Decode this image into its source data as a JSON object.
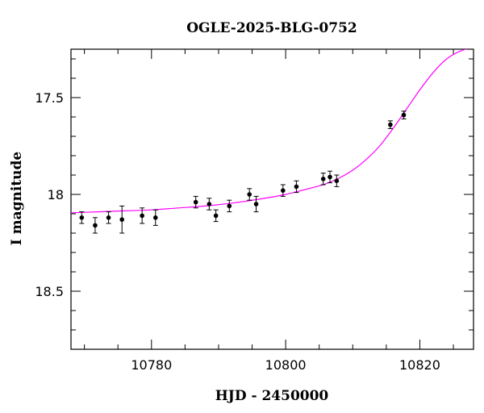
{
  "chart_data": {
    "type": "scatter",
    "title": "OGLE-2025-BLG-0752",
    "xlabel": "HJD - 2450000",
    "ylabel": "I magnitude",
    "xlim": [
      10768,
      10828
    ],
    "ylim": [
      18.8,
      17.25
    ],
    "y_inverted": true,
    "x_major_ticks": [
      10780,
      10800,
      10820
    ],
    "x_tick_labels": [
      "10780",
      "10800",
      "10820"
    ],
    "x_minor_step": 5,
    "y_major_ticks": [
      17.5,
      18,
      18.5
    ],
    "y_tick_labels": [
      "17.5",
      "18",
      "18.5"
    ],
    "y_minor_step": 0.1,
    "grid": false,
    "series": [
      {
        "kind": "points_with_errorbars",
        "color": "#000000",
        "x": [
          10769.6,
          10771.6,
          10773.6,
          10775.6,
          10778.6,
          10780.6,
          10786.6,
          10788.6,
          10789.6,
          10791.6,
          10794.6,
          10795.6,
          10799.6,
          10801.6,
          10805.6,
          10806.6,
          10807.6,
          10815.6,
          10817.6
        ],
        "y": [
          18.12,
          18.16,
          18.12,
          18.13,
          18.11,
          18.12,
          18.04,
          18.05,
          18.11,
          18.06,
          18.0,
          18.05,
          17.98,
          17.96,
          17.92,
          17.91,
          17.93,
          17.64,
          17.59
        ],
        "yerr": [
          0.03,
          0.04,
          0.03,
          0.07,
          0.04,
          0.04,
          0.03,
          0.03,
          0.03,
          0.03,
          0.03,
          0.04,
          0.03,
          0.03,
          0.03,
          0.03,
          0.03,
          0.02,
          0.02
        ]
      },
      {
        "kind": "model_curve",
        "color": "#ff00ff",
        "x": [
          10768,
          10772,
          10776,
          10780,
          10784,
          10788,
          10792,
          10796,
          10800,
          10804,
          10806,
          10808,
          10810,
          10812,
          10814,
          10816,
          10818,
          10820,
          10822,
          10824,
          10826,
          10828
        ],
        "y": [
          18.095,
          18.09,
          18.085,
          18.08,
          18.07,
          18.06,
          18.045,
          18.025,
          18.0,
          17.965,
          17.945,
          17.915,
          17.875,
          17.82,
          17.75,
          17.66,
          17.56,
          17.46,
          17.37,
          17.3,
          17.26,
          17.24
        ]
      }
    ]
  }
}
